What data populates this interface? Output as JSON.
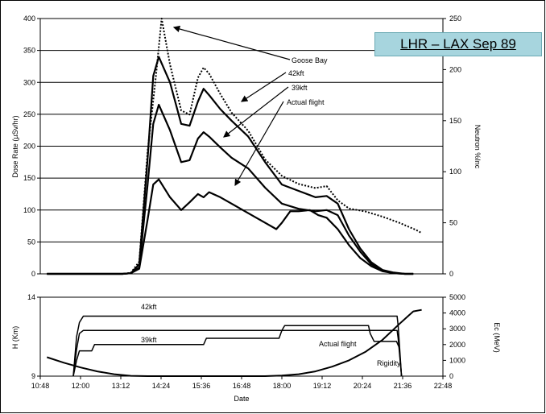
{
  "chart_data": [
    {
      "type": "line",
      "title": "LHR – LAX  Sep 89",
      "xlabel": "Date",
      "ylabel": "Dose Rate (µSv/hr)",
      "y2label": "Neutron %Inc",
      "x_unit": "time of day",
      "xlim": [
        "10:48",
        "22:48"
      ],
      "ylim": [
        0,
        400
      ],
      "y2lim": [
        0,
        250
      ],
      "yticks": [
        "0",
        "50",
        "100",
        "150",
        "200",
        "250",
        "300",
        "350",
        "400"
      ],
      "y2ticks": [
        "0",
        "50",
        "100",
        "150",
        "200",
        "250"
      ],
      "grid": "horizontal",
      "series": [
        {
          "name": "Goose Bay",
          "axis": "y2",
          "style": "dotted",
          "x": [
            "11:00",
            "11:50",
            "12:00",
            "12:10",
            "12:30",
            "13:00",
            "13:15",
            "13:30",
            "13:45",
            "14:00",
            "14:15",
            "14:25",
            "14:40",
            "15:00",
            "15:15",
            "15:30",
            "15:40",
            "15:50",
            "16:10",
            "16:30",
            "17:00",
            "17:30",
            "18:00",
            "18:30",
            "19:00",
            "19:20",
            "19:40",
            "20:00",
            "20:30",
            "21:00",
            "21:30",
            "22:00",
            "22:10"
          ],
          "y": [
            0,
            0,
            0,
            0,
            0,
            0,
            0,
            1,
            12,
            120,
            195,
            250,
            205,
            160,
            156,
            192,
            202,
            196,
            176,
            158,
            140,
            112,
            96,
            88,
            84,
            86,
            72,
            64,
            61,
            56,
            50,
            43,
            40
          ]
        },
        {
          "name": "42kft",
          "axis": "y",
          "x": [
            "11:00",
            "11:50",
            "12:00",
            "12:10",
            "12:30",
            "13:00",
            "13:15",
            "13:30",
            "13:45",
            "14:00",
            "14:10",
            "14:20",
            "14:40",
            "15:00",
            "15:15",
            "15:30",
            "15:40",
            "15:50",
            "16:10",
            "16:30",
            "17:00",
            "17:30",
            "18:00",
            "18:30",
            "19:00",
            "19:20",
            "19:40",
            "20:00",
            "20:20",
            "20:40",
            "21:00",
            "21:20",
            "21:40",
            "21:55"
          ],
          "y": [
            0,
            0,
            0,
            0,
            0,
            0,
            0,
            1,
            15,
            180,
            310,
            340,
            300,
            235,
            232,
            270,
            290,
            280,
            258,
            240,
            215,
            175,
            140,
            130,
            120,
            122,
            110,
            70,
            40,
            18,
            6,
            2,
            0,
            0
          ]
        },
        {
          "name": "39kft",
          "axis": "y",
          "x": [
            "11:00",
            "11:50",
            "12:00",
            "12:10",
            "12:30",
            "13:00",
            "13:15",
            "13:30",
            "13:45",
            "14:00",
            "14:10",
            "14:20",
            "14:40",
            "15:00",
            "15:15",
            "15:30",
            "15:40",
            "15:50",
            "16:10",
            "16:30",
            "17:00",
            "17:30",
            "18:00",
            "18:30",
            "19:00",
            "19:20",
            "19:40",
            "20:00",
            "20:20",
            "20:40",
            "21:00",
            "21:20",
            "21:40",
            "21:55"
          ],
          "y": [
            0,
            0,
            0,
            0,
            0,
            0,
            0,
            1,
            10,
            140,
            235,
            265,
            225,
            175,
            178,
            212,
            222,
            215,
            198,
            182,
            165,
            135,
            110,
            102,
            98,
            100,
            92,
            60,
            35,
            15,
            5,
            1,
            0,
            0
          ]
        },
        {
          "name": "Actual flight",
          "axis": "y",
          "x": [
            "11:00",
            "11:50",
            "12:00",
            "12:10",
            "12:30",
            "13:00",
            "13:15",
            "13:30",
            "13:45",
            "14:00",
            "14:10",
            "14:20",
            "14:40",
            "15:00",
            "15:15",
            "15:30",
            "15:40",
            "15:50",
            "16:10",
            "16:30",
            "17:00",
            "17:30",
            "17:50",
            "18:00",
            "18:15",
            "18:30",
            "18:50",
            "19:05",
            "19:20",
            "19:40",
            "20:00",
            "20:20",
            "20:40",
            "21:00",
            "21:20",
            "21:40",
            "21:55"
          ],
          "y": [
            0,
            0,
            0,
            0,
            0,
            0,
            0,
            1,
            8,
            85,
            140,
            148,
            120,
            100,
            112,
            125,
            120,
            128,
            120,
            110,
            95,
            80,
            70,
            80,
            98,
            98,
            100,
            92,
            88,
            70,
            45,
            25,
            12,
            4,
            1,
            0,
            0
          ]
        }
      ],
      "annotations": [
        "Goose Bay",
        "42kft",
        "39kft",
        "Actual flight"
      ]
    },
    {
      "type": "line",
      "xlabel": "Date",
      "ylabel": "H (Km)",
      "y2label": "Ec (MeV)",
      "xlim": [
        "10:48",
        "22:48"
      ],
      "ylim": [
        9,
        14
      ],
      "y2lim": [
        0,
        5000
      ],
      "yticks": [
        "9",
        "14"
      ],
      "y2ticks": [
        "0",
        "1000",
        "2000",
        "3000",
        "4000",
        "5000"
      ],
      "xticks": [
        "10:48",
        "12:00",
        "13:12",
        "14:24",
        "15:36",
        "16:48",
        "18:00",
        "19:12",
        "20:24",
        "21:36",
        "22:48"
      ],
      "series": [
        {
          "name": "42kft",
          "axis": "y",
          "x": [
            "11:47",
            "11:53",
            "11:58",
            "12:05",
            "21:26",
            "21:28",
            "21:34"
          ],
          "y": [
            9,
            11.5,
            12.4,
            12.8,
            12.8,
            12.2,
            9
          ]
        },
        {
          "name": "39kft",
          "axis": "y",
          "x": [
            "11:47",
            "11:53",
            "11:58",
            "12:05",
            "21:26",
            "21:28",
            "21:34"
          ],
          "y": [
            9,
            10.7,
            11.7,
            11.9,
            11.9,
            11.4,
            9
          ]
        },
        {
          "name": "Actual flight",
          "axis": "y",
          "x": [
            "11:47",
            "11:53",
            "11:58",
            "12:05",
            "12:20",
            "12:25",
            "15:40",
            "15:45",
            "17:55",
            "18:00",
            "18:05",
            "20:35",
            "20:38",
            "20:45",
            "21:25",
            "21:30",
            "21:34"
          ],
          "y": [
            9,
            10.0,
            10.6,
            10.6,
            10.6,
            11.0,
            11.0,
            11.4,
            11.4,
            11.9,
            12.2,
            12.2,
            11.7,
            11.2,
            11.2,
            10.8,
            9
          ]
        },
        {
          "name": "Rigidity",
          "axis": "y2",
          "x": [
            "11:00",
            "11:30",
            "12:00",
            "12:30",
            "13:00",
            "13:30",
            "14:00",
            "14:30",
            "15:00",
            "17:30",
            "18:00",
            "18:30",
            "19:00",
            "19:30",
            "20:00",
            "20:30",
            "21:00",
            "21:30",
            "21:55",
            "22:10"
          ],
          "y": [
            1200,
            850,
            550,
            300,
            120,
            20,
            0,
            0,
            0,
            0,
            40,
            120,
            300,
            600,
            1000,
            1550,
            2300,
            3300,
            4100,
            4200
          ]
        }
      ],
      "annotations": [
        "42kft",
        "39kft",
        "Actual flight",
        "Rigidity"
      ]
    }
  ]
}
